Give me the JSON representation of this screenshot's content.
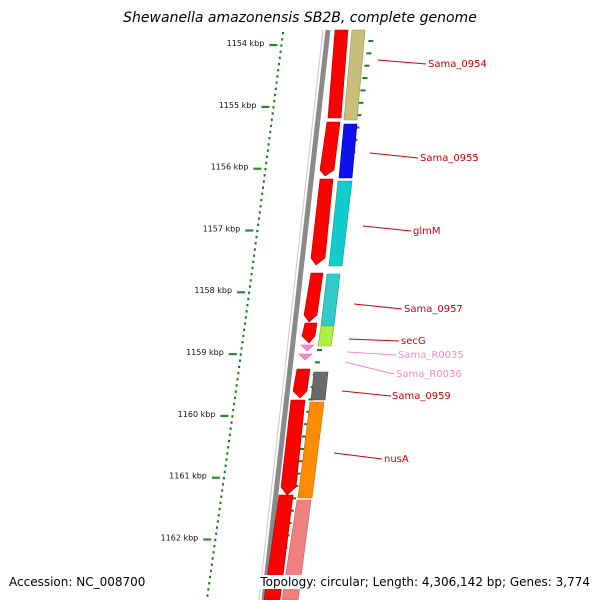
{
  "title": "Shewanella amazonensis SB2B, complete genome",
  "footer": {
    "accession": "Accession: NC_008700",
    "topology": "Topology: circular; Length: 4,306,142 bp; Genes: 3,774"
  },
  "colors": {
    "backbone": "#8a8a8a",
    "tick_major": "#2a8a2a",
    "tick_minor": "#1a7a1a",
    "forward_cds": "#ff0000",
    "label_cds": "#cc0000",
    "label_rna": "#ff88bb"
  },
  "ruler": {
    "labels": [
      "1154 kbp",
      "1155 kbp",
      "1156 kbp",
      "1157 kbp",
      "1158 kbp",
      "1159 kbp",
      "1160 kbp",
      "1161 kbp",
      "1162 kbp"
    ]
  },
  "gene_labels": [
    {
      "text": "Sama_0954",
      "kind": "cds"
    },
    {
      "text": "Sama_0955",
      "kind": "cds"
    },
    {
      "text": "glmM",
      "kind": "cds"
    },
    {
      "text": "Sama_0957",
      "kind": "cds"
    },
    {
      "text": "secG",
      "kind": "cds"
    },
    {
      "text": "Sama_R0035",
      "kind": "rna"
    },
    {
      "text": "Sama_R0036",
      "kind": "rna"
    },
    {
      "text": "Sama_0959",
      "kind": "cds"
    },
    {
      "text": "nusA",
      "kind": "cds"
    }
  ],
  "cog_colors": [
    "#c8bf7a",
    "#1010ee",
    "#11cccc",
    "#33c9c9",
    "#aaf040",
    "#6a6a6a",
    "#ff8c00",
    "#f08080"
  ]
}
